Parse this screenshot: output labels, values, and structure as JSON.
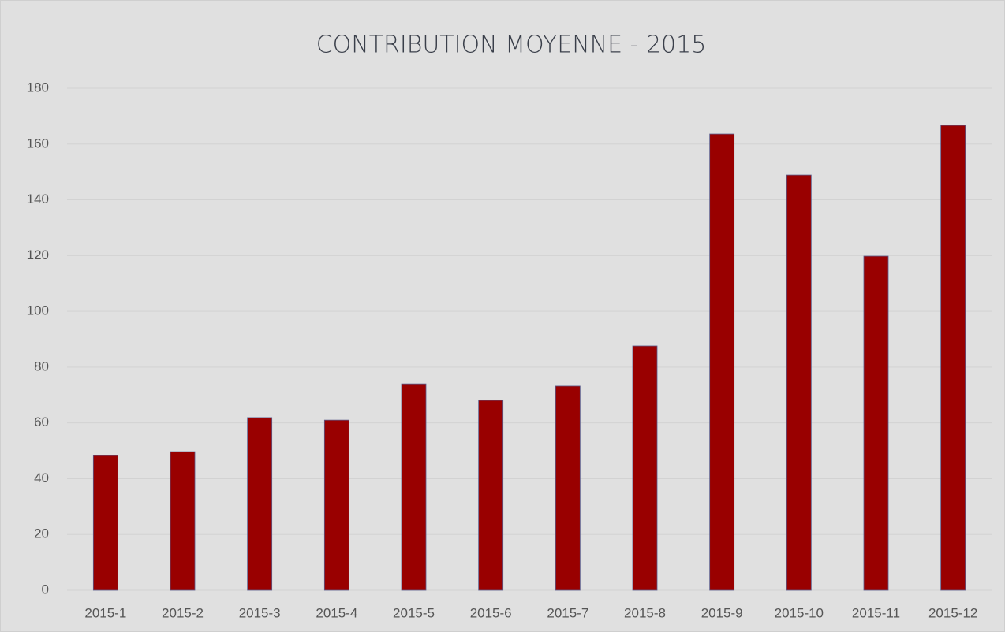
{
  "chart_data": {
    "type": "bar",
    "title": "CONTRIBUTION MOYENNE - 2015",
    "categories": [
      "2015-1",
      "2015-2",
      "2015-3",
      "2015-4",
      "2015-5",
      "2015-6",
      "2015-7",
      "2015-8",
      "2015-9",
      "2015-10",
      "2015-11",
      "2015-12"
    ],
    "values": [
      48.3,
      49.7,
      61.9,
      61.0,
      74.0,
      68.1,
      73.2,
      87.6,
      163.6,
      148.9,
      119.8,
      166.7
    ],
    "color": "#990000",
    "ylim": [
      0,
      180
    ],
    "yticks": [
      0,
      20,
      40,
      60,
      80,
      100,
      120,
      140,
      160,
      180
    ],
    "grid": true
  }
}
